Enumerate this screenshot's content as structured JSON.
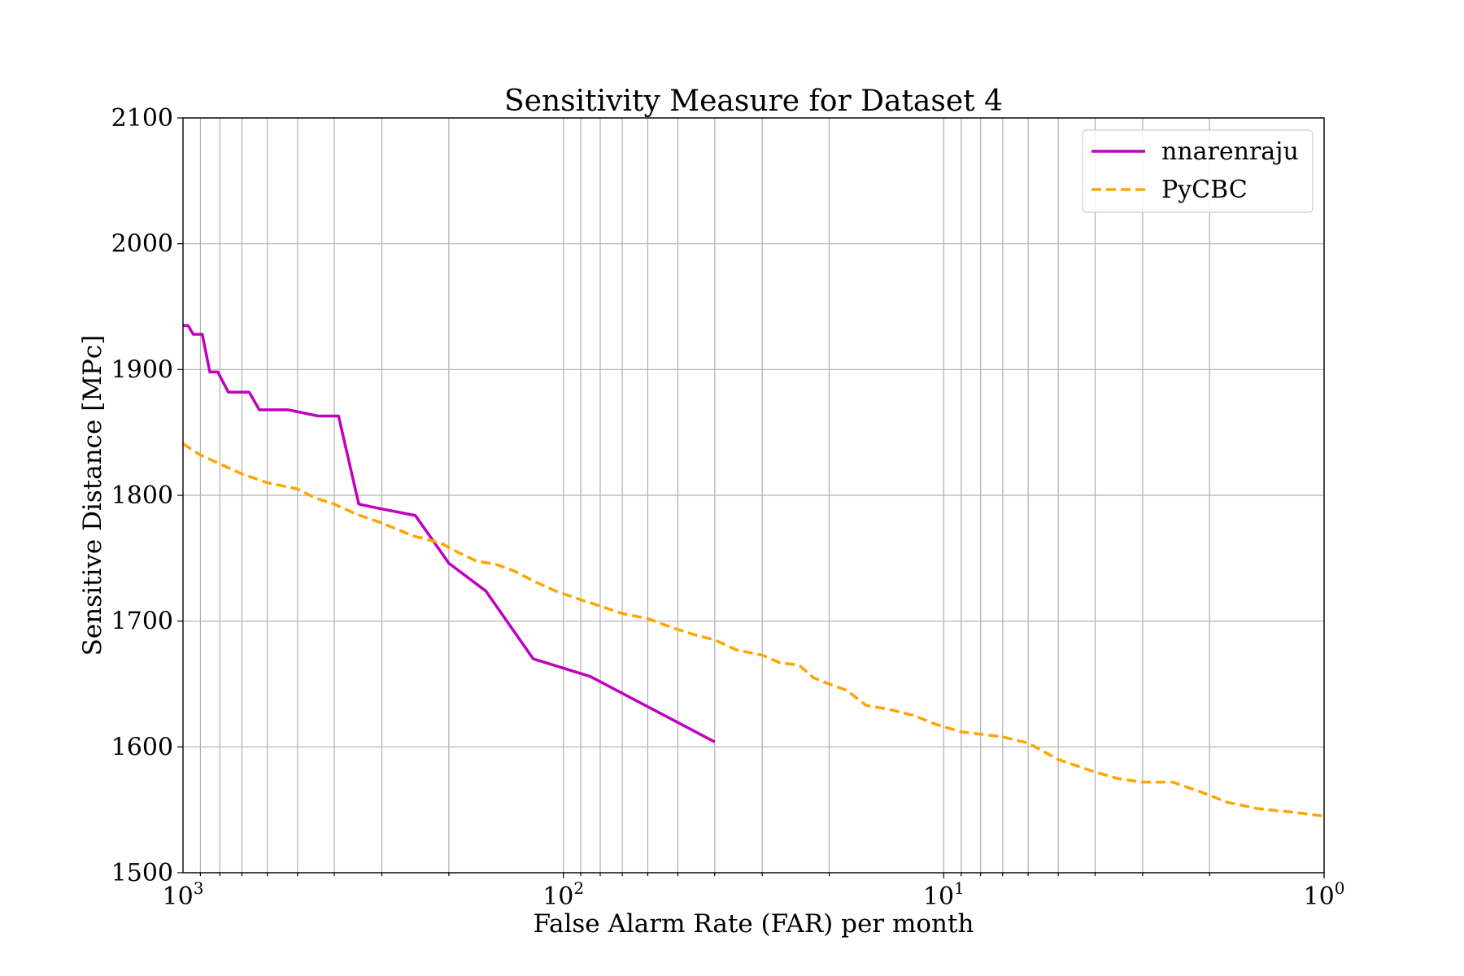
{
  "chart_data": {
    "type": "line",
    "title": "Sensitivity Measure for Dataset 4",
    "xlabel": "False Alarm Rate (FAR) per month",
    "ylabel": "Sensitive Distance [MPc]",
    "x_scale": "log",
    "x_reversed": true,
    "xlim": [
      1000,
      1
    ],
    "ylim": [
      1500,
      2100
    ],
    "grid": true,
    "legend_position": "top-right",
    "x_ticks": [
      {
        "base": "10",
        "exp": "3",
        "value": 1000
      },
      {
        "base": "10",
        "exp": "2",
        "value": 100
      },
      {
        "base": "10",
        "exp": "1",
        "value": 10
      },
      {
        "base": "10",
        "exp": "0",
        "value": 1
      }
    ],
    "y_ticks": [
      "1500",
      "1600",
      "1700",
      "1800",
      "1900",
      "2000",
      "2100"
    ],
    "series": [
      {
        "name": "nnarenraju",
        "color": "#bf00bf",
        "style": "solid",
        "points": [
          [
            1000,
            1935
          ],
          [
            970,
            1935
          ],
          [
            940,
            1928
          ],
          [
            890,
            1928
          ],
          [
            850,
            1898
          ],
          [
            810,
            1898
          ],
          [
            760,
            1882
          ],
          [
            670,
            1882
          ],
          [
            630,
            1868
          ],
          [
            530,
            1868
          ],
          [
            440,
            1863
          ],
          [
            390,
            1863
          ],
          [
            345,
            1793
          ],
          [
            310,
            1790
          ],
          [
            245,
            1784
          ],
          [
            200,
            1746
          ],
          [
            160,
            1724
          ],
          [
            120,
            1670
          ],
          [
            85,
            1656
          ],
          [
            40,
            1604
          ]
        ]
      },
      {
        "name": "PyCBC",
        "color": "#ffa500",
        "style": "dashed",
        "points": [
          [
            1000,
            1841
          ],
          [
            900,
            1832
          ],
          [
            800,
            1825
          ],
          [
            700,
            1817
          ],
          [
            600,
            1810
          ],
          [
            500,
            1805
          ],
          [
            450,
            1798
          ],
          [
            400,
            1793
          ],
          [
            350,
            1785
          ],
          [
            300,
            1778
          ],
          [
            250,
            1768
          ],
          [
            210,
            1762
          ],
          [
            190,
            1755
          ],
          [
            170,
            1748
          ],
          [
            150,
            1745
          ],
          [
            135,
            1740
          ],
          [
            120,
            1732
          ],
          [
            105,
            1724
          ],
          [
            90,
            1717
          ],
          [
            80,
            1712
          ],
          [
            70,
            1706
          ],
          [
            60,
            1702
          ],
          [
            52,
            1695
          ],
          [
            45,
            1689
          ],
          [
            40,
            1685
          ],
          [
            35,
            1677
          ],
          [
            30,
            1673
          ],
          [
            27,
            1667
          ],
          [
            24,
            1665
          ],
          [
            22,
            1655
          ],
          [
            20,
            1650
          ],
          [
            18,
            1645
          ],
          [
            16,
            1633
          ],
          [
            14,
            1630
          ],
          [
            12,
            1625
          ],
          [
            10.5,
            1618
          ],
          [
            9,
            1612
          ],
          [
            7,
            1608
          ],
          [
            6,
            1603
          ],
          [
            5,
            1590
          ],
          [
            4,
            1580
          ],
          [
            3.5,
            1575
          ],
          [
            3,
            1572
          ],
          [
            2.5,
            1572
          ],
          [
            2.1,
            1564
          ],
          [
            1.8,
            1556
          ],
          [
            1.5,
            1551
          ],
          [
            1.2,
            1548
          ],
          [
            1.0,
            1545
          ]
        ]
      }
    ]
  }
}
